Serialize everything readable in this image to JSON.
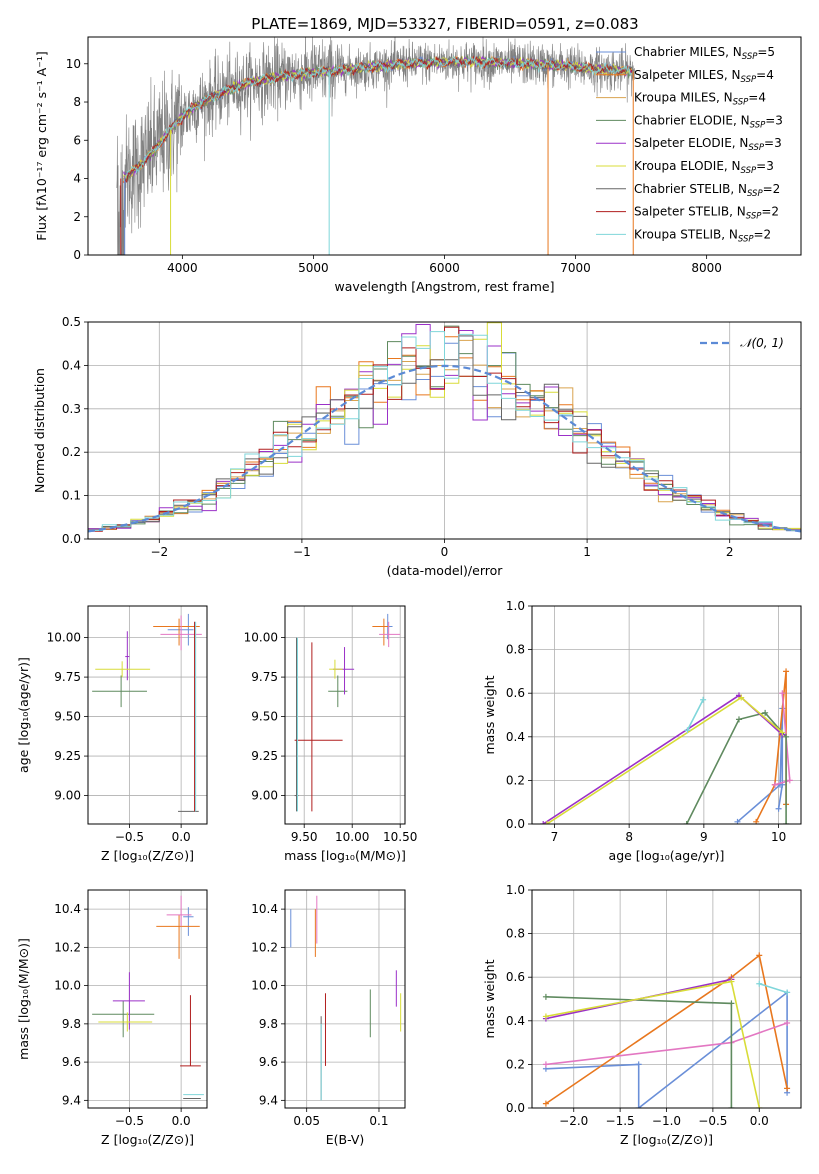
{
  "figure_title": "PLATE=1869, MJD=53327, FIBERID=0591, z=0.083",
  "model_colors": [
    "#6a8fd8",
    "#e8771e",
    "#d9a34f",
    "#5f8a5f",
    "#9b30c8",
    "#d8dc38",
    "#666666",
    "#b01e1e",
    "#7fd6da"
  ],
  "chart_data": [
    {
      "id": "spectrum",
      "type": "line",
      "title": "PLATE=1869, MJD=53327, FIBERID=0591, z=0.083",
      "xlabel": "wavelength [Angstrom, rest frame]",
      "ylabel": "Flux [f$_\\lambda$10$^{-17}$ erg cm$^{-2}$ s$^{-1}$ A$^{-1}$]",
      "ylabel_display": "Flux [fλ10⁻¹⁷ erg cm⁻² s⁻¹ A⁻¹]",
      "xlim": [
        3280,
        8720
      ],
      "ylim": [
        0,
        11.4
      ],
      "xticks": [
        4000,
        5000,
        6000,
        7000,
        8000
      ],
      "yticks": [
        0,
        2,
        4,
        6,
        8,
        10
      ],
      "grid": false,
      "legend_position": "top-right",
      "observed_color": "#808080",
      "continuum": {
        "x": [
          3550,
          3650,
          3800,
          3950,
          4100,
          4300,
          4500,
          4800,
          5100,
          5400,
          5700,
          6000,
          6300,
          6600,
          6900,
          7200,
          7450
        ],
        "y": [
          4.0,
          4.5,
          5.6,
          6.9,
          7.8,
          8.5,
          9.0,
          9.4,
          9.6,
          9.8,
          10.0,
          10.1,
          10.1,
          10.0,
          9.9,
          9.7,
          9.6
        ]
      },
      "model_range": [
        3550,
        7430
      ],
      "observed_range": [
        3500,
        7450
      ],
      "legend": [
        {
          "label": "Chabrier MILES, N",
          "sub": "SSP",
          "suffix": "=5",
          "color": "#6a8fd8"
        },
        {
          "label": "Salpeter MILES, N",
          "sub": "SSP",
          "suffix": "=4",
          "color": "#e8771e"
        },
        {
          "label": "Kroupa MILES, N",
          "sub": "SSP",
          "suffix": "=4",
          "color": "#d9a34f"
        },
        {
          "label": "Chabrier ELODIE, N",
          "sub": "SSP",
          "suffix": "=3",
          "color": "#5f8a5f"
        },
        {
          "label": "Salpeter ELODIE, N",
          "sub": "SSP",
          "suffix": "=3",
          "color": "#9b30c8"
        },
        {
          "label": "Kroupa ELODIE, N",
          "sub": "SSP",
          "suffix": "=3",
          "color": "#d8dc38"
        },
        {
          "label": "Chabrier STELIB, N",
          "sub": "SSP",
          "suffix": "=2",
          "color": "#666666"
        },
        {
          "label": "Salpeter STELIB, N",
          "sub": "SSP",
          "suffix": "=2",
          "color": "#b01e1e"
        },
        {
          "label": "Kroupa STELIB, N",
          "sub": "SSP",
          "suffix": "=2",
          "color": "#7fd6da"
        }
      ]
    },
    {
      "id": "residuals",
      "type": "histogram",
      "xlabel": "(data-model)/error",
      "ylabel": "Normed distribution",
      "xlim": [
        -2.5,
        2.5
      ],
      "ylim": [
        0,
        0.5
      ],
      "xticks": [
        -2,
        -1,
        0,
        1,
        2
      ],
      "yticks": [
        0.0,
        0.1,
        0.2,
        0.3,
        0.4,
        0.5
      ],
      "grid": true,
      "bin_width": 0.1,
      "reference_curve": {
        "label": "𝒩(0, 1)",
        "mean": 0,
        "sigma": 1,
        "color": "#5b8ad6",
        "style": "dashed"
      },
      "legend_position": "top-right"
    },
    {
      "id": "age_vs_Z",
      "type": "errorbar",
      "xlabel": "Z [log₁₀(Z/Z⊙)]",
      "ylabel": "age  [log₁₀(age/yr)]",
      "xlim": [
        -0.9,
        0.25
      ],
      "ylim": [
        8.82,
        10.2
      ],
      "xticks": [
        -0.5,
        0.0
      ],
      "yticks": [
        9.0,
        9.25,
        9.5,
        9.75,
        10.0
      ],
      "grid": true,
      "points": [
        {
          "x": 0.07,
          "y": 10.05,
          "xerr": [
            0.2,
            0.05
          ],
          "yerr": [
            0.1,
            0.1
          ],
          "color": "#6a8fd8"
        },
        {
          "x": -0.02,
          "y": 10.07,
          "xerr": [
            0.25,
            0.2
          ],
          "yerr": [
            0.12,
            0.05
          ],
          "color": "#e8771e"
        },
        {
          "x": 0.0,
          "y": 10.02,
          "xerr": [
            0.2,
            0.2
          ],
          "yerr": [
            0.1,
            0.12
          ],
          "color": "#e377c2"
        },
        {
          "x": -0.58,
          "y": 9.66,
          "xerr": [
            0.28,
            0.25
          ],
          "yerr": [
            0.1,
            0.1
          ],
          "color": "#5f8a5f"
        },
        {
          "x": -0.52,
          "y": 9.88,
          "xerr": [
            0.02,
            0.02
          ],
          "yerr": [
            0.15,
            0.16
          ],
          "color": "#9b30c8"
        },
        {
          "x": -0.57,
          "y": 9.8,
          "xerr": [
            0.26,
            0.27
          ],
          "yerr": [
            0.05,
            0.05
          ],
          "color": "#d8dc38"
        },
        {
          "x": 0.07,
          "y": 8.9,
          "xerr": [
            0.1,
            0.1
          ],
          "yerr": [
            0.0,
            0.0
          ],
          "color": "#666666"
        },
        {
          "x": 0.13,
          "y": 9.5,
          "xerr": [
            0.0,
            0.0
          ],
          "yerr": [
            0.6,
            0.6
          ],
          "color": "#b01e1e"
        },
        {
          "x": 0.14,
          "y": 9.5,
          "xerr": [
            0.0,
            0.0
          ],
          "yerr": [
            0.6,
            0.6
          ],
          "color": "#7fd6da"
        }
      ]
    },
    {
      "id": "age_vs_mass",
      "type": "errorbar",
      "xlabel": "mass [log₁₀(M/M⊙)]",
      "ylabel": "",
      "xlim": [
        9.3,
        10.55
      ],
      "ylim": [
        8.82,
        10.2
      ],
      "xticks": [
        9.5,
        10.0,
        10.5
      ],
      "yticks": [
        9.0,
        9.25,
        9.5,
        9.75,
        10.0
      ],
      "grid": true,
      "points": [
        {
          "x": 10.37,
          "y": 10.07,
          "xerr": [
            0.12,
            0.05
          ],
          "yerr": [
            0.08,
            0.08
          ],
          "color": "#6a8fd8"
        },
        {
          "x": 10.33,
          "y": 10.07,
          "xerr": [
            0.12,
            0.05
          ],
          "yerr": [
            0.12,
            0.05
          ],
          "color": "#e8771e"
        },
        {
          "x": 10.38,
          "y": 10.02,
          "xerr": [
            0.1,
            0.12
          ],
          "yerr": [
            0.08,
            0.08
          ],
          "color": "#e377c2"
        },
        {
          "x": 9.85,
          "y": 9.66,
          "xerr": [
            0.1,
            0.1
          ],
          "yerr": [
            0.1,
            0.1
          ],
          "color": "#5f8a5f"
        },
        {
          "x": 9.92,
          "y": 9.8,
          "xerr": [
            0.12,
            0.1
          ],
          "yerr": [
            0.16,
            0.14
          ],
          "color": "#9b30c8"
        },
        {
          "x": 9.82,
          "y": 9.8,
          "xerr": [
            0.06,
            0.08
          ],
          "yerr": [
            0.06,
            0.06
          ],
          "color": "#d8dc38"
        },
        {
          "x": 9.42,
          "y": 9.0,
          "xerr": [
            0.02,
            0.02
          ],
          "yerr": [
            0.1,
            1.0
          ],
          "color": "#666666"
        },
        {
          "x": 9.58,
          "y": 9.35,
          "xerr": [
            0.18,
            0.32
          ],
          "yerr": [
            0.45,
            0.62
          ],
          "color": "#b01e1e"
        },
        {
          "x": 9.43,
          "y": 9.45,
          "xerr": [
            0.0,
            0.0
          ],
          "yerr": [
            0.55,
            0.55
          ],
          "color": "#7fd6da"
        }
      ]
    },
    {
      "id": "weight_vs_age",
      "type": "line",
      "xlabel": "age  [log₁₀(age/yr)]",
      "ylabel": "mass weight",
      "xlim": [
        6.7,
        10.3
      ],
      "ylim": [
        0,
        1.0
      ],
      "xticks": [
        7,
        8,
        9,
        10
      ],
      "yticks": [
        0.0,
        0.2,
        0.4,
        0.6,
        0.8,
        1.0
      ],
      "grid": true,
      "series": [
        {
          "color": "#6a8fd8",
          "x": [
            9.45,
            10.02,
            10.05,
            10.05,
            10.0
          ],
          "y": [
            0.01,
            0.18,
            0.53,
            0.18,
            0.07
          ]
        },
        {
          "color": "#e8771e",
          "x": [
            9.7,
            9.95,
            10.1,
            10.1
          ],
          "y": [
            0.01,
            0.18,
            0.7,
            0.09
          ]
        },
        {
          "color": "#e377c2",
          "x": [
            9.95,
            10.15,
            10.05
          ],
          "y": [
            0.18,
            0.2,
            0.6
          ]
        },
        {
          "color": "#5f8a5f",
          "x": [
            8.77,
            9.47,
            9.82,
            10.1,
            10.1
          ],
          "y": [
            0.0,
            0.48,
            0.51,
            0.4,
            0.0
          ]
        },
        {
          "color": "#9b30c8",
          "x": [
            6.85,
            9.47,
            10.05
          ],
          "y": [
            0.0,
            0.59,
            0.41
          ]
        },
        {
          "color": "#d8dc38",
          "x": [
            6.9,
            9.5,
            10.05
          ],
          "y": [
            0.0,
            0.58,
            0.42
          ]
        },
        {
          "color": "#7fd6da",
          "x": [
            8.78,
            8.99
          ],
          "y": [
            0.43,
            0.57
          ]
        }
      ]
    },
    {
      "id": "mass_vs_Z",
      "type": "errorbar",
      "xlabel": "Z [log₁₀(Z/Z⊙)]",
      "ylabel": "mass [log₁₀(M/M⊙)]",
      "xlim": [
        -0.9,
        0.25
      ],
      "ylim": [
        9.36,
        10.5
      ],
      "xticks": [
        -0.5,
        0.0
      ],
      "yticks": [
        9.4,
        9.6,
        9.8,
        10.0,
        10.2,
        10.4
      ],
      "grid": true,
      "points": [
        {
          "x": 0.07,
          "y": 10.36,
          "xerr": [
            0.05,
            0.05
          ],
          "yerr": [
            0.1,
            0.05
          ],
          "color": "#6a8fd8"
        },
        {
          "x": -0.02,
          "y": 10.31,
          "xerr": [
            0.22,
            0.2
          ],
          "yerr": [
            0.17,
            0.06
          ],
          "color": "#e8771e"
        },
        {
          "x": 0.0,
          "y": 10.37,
          "xerr": [
            0.14,
            0.1
          ],
          "yerr": [
            0.06,
            0.1
          ],
          "color": "#e377c2"
        },
        {
          "x": -0.56,
          "y": 9.85,
          "xerr": [
            0.3,
            0.3
          ],
          "yerr": [
            0.12,
            0.07
          ],
          "color": "#5f8a5f"
        },
        {
          "x": -0.5,
          "y": 9.92,
          "xerr": [
            0.16,
            0.15
          ],
          "yerr": [
            0.15,
            0.15
          ],
          "color": "#9b30c8"
        },
        {
          "x": -0.52,
          "y": 9.81,
          "xerr": [
            0.28,
            0.24
          ],
          "yerr": [
            0.05,
            0.05
          ],
          "color": "#d8dc38"
        },
        {
          "x": 0.09,
          "y": 9.41,
          "xerr": [
            0.07,
            0.1
          ],
          "yerr": [
            0.0,
            0.0
          ],
          "color": "#666666"
        },
        {
          "x": 0.09,
          "y": 9.58,
          "xerr": [
            0.1,
            0.1
          ],
          "yerr": [
            0.0,
            0.37
          ],
          "color": "#b01e1e"
        },
        {
          "x": 0.12,
          "y": 9.43,
          "xerr": [
            0.1,
            0.1
          ],
          "yerr": [
            0.0,
            0.0
          ],
          "color": "#7fd6da"
        }
      ]
    },
    {
      "id": "mass_vs_ebv",
      "type": "errorbar",
      "xlabel": "E(B-V)",
      "ylabel": "",
      "xlim": [
        0.035,
        0.118
      ],
      "ylim": [
        9.36,
        10.5
      ],
      "xticks": [
        0.05,
        0.1
      ],
      "yticks": [
        9.4,
        9.6,
        9.8,
        10.0,
        10.2,
        10.4
      ],
      "grid": true,
      "points": [
        {
          "x": 0.039,
          "y": 10.3,
          "yerr": [
            0.1,
            0.1
          ],
          "color": "#6a8fd8"
        },
        {
          "x": 0.056,
          "y": 10.3,
          "yerr": [
            0.15,
            0.1
          ],
          "color": "#e8771e"
        },
        {
          "x": 0.057,
          "y": 10.32,
          "yerr": [
            0.1,
            0.15
          ],
          "color": "#e377c2"
        },
        {
          "x": 0.094,
          "y": 9.83,
          "yerr": [
            0.1,
            0.15
          ],
          "color": "#5f8a5f"
        },
        {
          "x": 0.112,
          "y": 9.99,
          "yerr": [
            0.1,
            0.09
          ],
          "color": "#9b30c8"
        },
        {
          "x": 0.115,
          "y": 9.86,
          "yerr": [
            0.1,
            0.1
          ],
          "color": "#d8dc38"
        },
        {
          "x": 0.06,
          "y": 9.62,
          "yerr": [
            0.22,
            0.22
          ],
          "color": "#666666"
        },
        {
          "x": 0.063,
          "y": 9.76,
          "yerr": [
            0.18,
            0.2
          ],
          "color": "#b01e1e"
        },
        {
          "x": 0.06,
          "y": 9.6,
          "yerr": [
            0.2,
            0.2
          ],
          "color": "#7fd6da"
        }
      ]
    },
    {
      "id": "weight_vs_Z",
      "type": "line",
      "xlabel": "Z [log₁₀(Z/Z⊙)]",
      "ylabel": "mass weight",
      "xlim": [
        -2.45,
        0.45
      ],
      "ylim": [
        0,
        1.0
      ],
      "xticks": [
        -2.0,
        -1.5,
        -1.0,
        -0.5,
        0.0
      ],
      "yticks": [
        0.0,
        0.2,
        0.4,
        0.6,
        0.8,
        1.0
      ],
      "grid": true,
      "series": [
        {
          "color": "#6a8fd8",
          "x": [
            -2.3,
            -1.3,
            -1.3,
            0.3,
            0.3
          ],
          "y": [
            0.18,
            0.2,
            0.0,
            0.53,
            0.07
          ]
        },
        {
          "color": "#e8771e",
          "x": [
            -2.3,
            -0.3,
            0.0,
            0.3
          ],
          "y": [
            0.02,
            0.6,
            0.7,
            0.09
          ]
        },
        {
          "color": "#e377c2",
          "x": [
            -2.3,
            -0.3,
            0.3
          ],
          "y": [
            0.2,
            0.3,
            0.39
          ]
        },
        {
          "color": "#5f8a5f",
          "x": [
            -2.3,
            -0.3,
            -0.3
          ],
          "y": [
            0.51,
            0.48,
            0.0
          ]
        },
        {
          "color": "#9b30c8",
          "x": [
            -2.3,
            -0.3
          ],
          "y": [
            0.41,
            0.59
          ]
        },
        {
          "color": "#d8dc38",
          "x": [
            -2.3,
            -0.3,
            0.0
          ],
          "y": [
            0.42,
            0.58,
            0.0
          ]
        },
        {
          "color": "#7fd6da",
          "x": [
            0.0,
            0.3
          ],
          "y": [
            0.57,
            0.53
          ]
        }
      ]
    }
  ]
}
